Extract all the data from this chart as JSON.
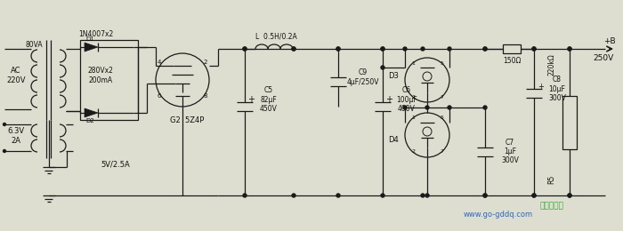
{
  "bg_color": "#deded0",
  "line_color": "#1a1a1a",
  "text_color": "#111111",
  "watermark": "www.go-gddq.com",
  "labels": {
    "in1N4007": "1N4007x2",
    "D1": "D1",
    "D2": "D2",
    "80VA": "80VA",
    "AC220V": "AC\n220V",
    "63V2A": "6.3V\n2A",
    "280Vx2": "280Vx2\n200mA",
    "5V25A": "5V/2.5A",
    "G2_5Z4P": "G2  5Z4P",
    "L_label": "L  0.5H/0.2A",
    "C9_label": "C9\n4μF/250V",
    "C5_label": "C5\n82μF\n450V",
    "C6_label": "C6\n100μF\n400V",
    "D3": "D3",
    "D4": "D4",
    "C7_label": "C7\n1μF\n300V",
    "C8_label": "C8\n10μF\n300V",
    "R5_label": "220kΩ",
    "R5": "R5",
    "R150": "150Ω",
    "plusB": "+B",
    "v250": "250V",
    "pin4": "4",
    "pin2_tube": "2",
    "pin6": "6",
    "pin8": "8"
  }
}
